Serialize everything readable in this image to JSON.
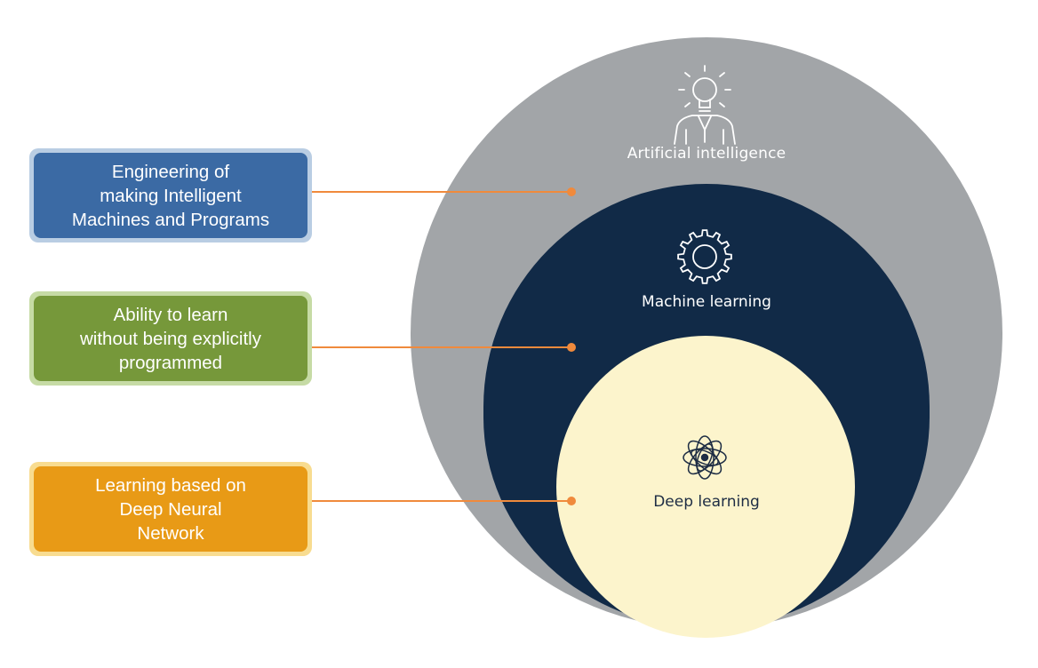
{
  "callouts": [
    {
      "text": "Engineering of\nmaking Intelligent\nMachines and Programs",
      "color": "#3b6aa4"
    },
    {
      "text": "Ability to learn\nwithout being explicitly\nprogrammed",
      "color": "#76983a"
    },
    {
      "text": "Learning based on\nDeep Neural\nNetwork",
      "color": "#e89a16"
    }
  ],
  "circles": {
    "artificial_intelligence": {
      "label": "Artificial intelligence",
      "color": "#a2a5a8",
      "icon": "lightbulb-person-icon"
    },
    "machine_learning": {
      "label": "Machine learning",
      "color": "#112a47",
      "icon": "gear-icon"
    },
    "deep_learning": {
      "label": "Deep learning",
      "color": "#fcf4cc",
      "icon": "neural-network-icon"
    }
  },
  "connector_color": "#f08a3c"
}
